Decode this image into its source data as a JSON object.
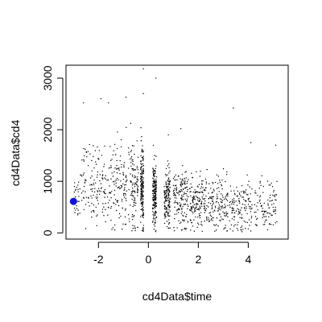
{
  "chart_data": {
    "type": "scatter",
    "title": "",
    "xlabel": "cd4Data$time",
    "ylabel": "cd4Data$cd4",
    "xlim": [
      -3.3,
      5.6
    ],
    "ylim": [
      -120,
      3250
    ],
    "xticks": [
      -2,
      0,
      2,
      4
    ],
    "yticks": [
      0,
      1000,
      2000,
      3000
    ],
    "grid": false,
    "legend": "none",
    "colors": {
      "points": "#000000",
      "highlight": "#1010e0",
      "axes": "#000000"
    },
    "highlight_point": {
      "x": -3.0,
      "y": 610
    },
    "sample_points": [
      {
        "x": -2.6,
        "y": 2520
      },
      {
        "x": -1.9,
        "y": 2600
      },
      {
        "x": -1.6,
        "y": 2520
      },
      {
        "x": -0.9,
        "y": 2630
      },
      {
        "x": -0.2,
        "y": 3180
      },
      {
        "x": 0.3,
        "y": 3000
      },
      {
        "x": -0.2,
        "y": 2700
      },
      {
        "x": 3.4,
        "y": 2420
      },
      {
        "x": 5.1,
        "y": 1700
      },
      {
        "x": 4.1,
        "y": 1750
      },
      {
        "x": 1.3,
        "y": 2020
      },
      {
        "x": 0.8,
        "y": 1900
      }
    ],
    "series": [
      {
        "clusters": [
          {
            "x": -2.9,
            "spread": 0.12,
            "mean": 700,
            "sd": 220,
            "n": 25
          },
          {
            "x": -2.4,
            "spread": 0.35,
            "mean": 1000,
            "sd": 380,
            "n": 80
          },
          {
            "x": -1.7,
            "spread": 0.35,
            "mean": 900,
            "sd": 360,
            "n": 90
          },
          {
            "x": -1.1,
            "spread": 0.25,
            "mean": 950,
            "sd": 380,
            "n": 90
          },
          {
            "x": -0.6,
            "spread": 0.2,
            "mean": 900,
            "sd": 380,
            "n": 110
          },
          {
            "x": -0.25,
            "spread": 0.06,
            "mean": 900,
            "sd": 380,
            "n": 170
          },
          {
            "x": 0.25,
            "spread": 0.08,
            "mean": 750,
            "sd": 300,
            "n": 180
          },
          {
            "x": 0.75,
            "spread": 0.12,
            "mean": 680,
            "sd": 280,
            "n": 150
          },
          {
            "x": 1.3,
            "spread": 0.3,
            "mean": 650,
            "sd": 300,
            "n": 150
          },
          {
            "x": 2.0,
            "spread": 0.35,
            "mean": 560,
            "sd": 280,
            "n": 160
          },
          {
            "x": 2.8,
            "spread": 0.4,
            "mean": 560,
            "sd": 260,
            "n": 140
          },
          {
            "x": 3.7,
            "spread": 0.45,
            "mean": 500,
            "sd": 250,
            "n": 130
          },
          {
            "x": 4.7,
            "spread": 0.45,
            "mean": 480,
            "sd": 260,
            "n": 100
          }
        ]
      }
    ]
  }
}
